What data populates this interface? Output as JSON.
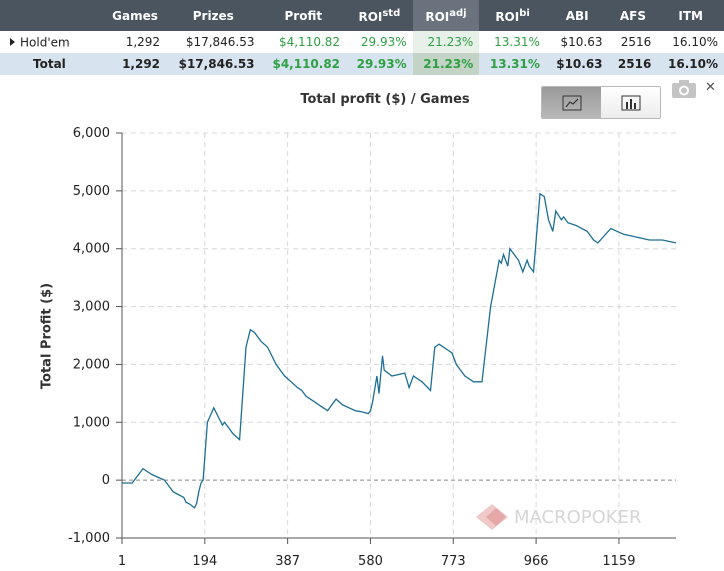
{
  "table": {
    "headers": [
      {
        "label": "Games",
        "sup": ""
      },
      {
        "label": "Prizes",
        "sup": ""
      },
      {
        "label": "Profit",
        "sup": ""
      },
      {
        "label": "ROI",
        "sup": "std"
      },
      {
        "label": "ROI",
        "sup": "adj"
      },
      {
        "label": "ROI",
        "sup": "bi"
      },
      {
        "label": "ABI",
        "sup": ""
      },
      {
        "label": "AFS",
        "sup": ""
      },
      {
        "label": "ITM",
        "sup": ""
      }
    ],
    "rows": [
      {
        "name": "Hold'em",
        "cells": [
          "1,292",
          "$17,846.53",
          "$4,110.82",
          "29.93%",
          "21.23%",
          "13.31%",
          "$10.63",
          "2516",
          "16.10%"
        ]
      }
    ],
    "total": {
      "name": "Total",
      "cells": [
        "1,292",
        "$17,846.53",
        "$4,110.82",
        "29.93%",
        "21.23%",
        "13.31%",
        "$10.63",
        "2516",
        "16.10%"
      ]
    }
  },
  "colors": {
    "line": "#1d6f95",
    "profit_green": "#2ea043",
    "grid": "#d8d8d8",
    "header_bg": "#4b5560"
  },
  "chart_data": {
    "type": "line",
    "title": "Total profit ($) / Games",
    "xlabel": "",
    "ylabel": "Total Profit ($)",
    "xlim": [
      1,
      1292
    ],
    "ylim": [
      -1000,
      6000
    ],
    "yticks": [
      -1000,
      0,
      1000,
      2000,
      3000,
      4000,
      5000,
      6000
    ],
    "ytick_labels": [
      "-1,000",
      "0",
      "1,000",
      "2,000",
      "3,000",
      "4,000",
      "5,000",
      "6,000"
    ],
    "xticks": [
      1,
      194,
      387,
      580,
      773,
      966,
      1159
    ],
    "xtick_labels": [
      "1",
      "194",
      "387",
      "580",
      "773",
      "966",
      "1159"
    ],
    "grid": true,
    "series": [
      {
        "x": [
          1,
          25,
          30,
          50,
          70,
          100,
          120,
          145,
          150,
          160,
          165,
          170,
          175,
          180,
          185,
          190,
          200,
          215,
          225,
          235,
          240,
          245,
          250,
          260,
          275,
          290,
          300,
          310,
          325,
          340,
          360,
          380,
          395,
          410,
          420,
          430,
          440,
          470,
          480,
          490,
          500,
          515,
          530,
          545,
          560,
          575,
          580,
          585,
          595,
          600,
          608,
          612,
          630,
          660,
          670,
          680,
          700,
          720,
          730,
          740,
          760,
          770,
          775,
          780,
          800,
          820,
          840,
          860,
          880,
          885,
          890,
          900,
          905,
          915,
          925,
          935,
          940,
          945,
          950,
          960,
          975,
          985,
          990,
          995,
          1000,
          1005,
          1012,
          1025,
          1030,
          1040,
          1060,
          1085,
          1100,
          1110,
          1140,
          1170,
          1200,
          1230,
          1260,
          1292
        ],
        "y": [
          -50,
          -50,
          0,
          200,
          100,
          0,
          -200,
          -300,
          -380,
          -420,
          -450,
          -480,
          -400,
          -200,
          -50,
          0,
          1000,
          1250,
          1100,
          950,
          1000,
          950,
          900,
          800,
          700,
          2300,
          2600,
          2550,
          2400,
          2300,
          2000,
          1800,
          1700,
          1600,
          1550,
          1450,
          1400,
          1250,
          1200,
          1300,
          1400,
          1300,
          1250,
          1200,
          1180,
          1150,
          1200,
          1350,
          1800,
          1500,
          2150,
          1900,
          1800,
          1850,
          1600,
          1800,
          1700,
          1550,
          2300,
          2350,
          2250,
          2200,
          2100,
          2000,
          1800,
          1700,
          1700,
          3000,
          3800,
          3750,
          3900,
          3700,
          4000,
          3900,
          3800,
          3600,
          3700,
          3800,
          3700,
          3600,
          4950,
          4900,
          4700,
          4500,
          4400,
          4300,
          4650,
          4500,
          4550,
          4450,
          4400,
          4300,
          4150,
          4100,
          4350,
          4250,
          4200,
          4150,
          4150,
          4100
        ]
      }
    ]
  },
  "watermark": "MACROPOKER",
  "icons": {
    "line_view": "line-chart-icon",
    "bar_view": "bar-chart-icon",
    "camera": "camera-icon",
    "close": "close-icon",
    "expand": "triangle-right-icon"
  }
}
